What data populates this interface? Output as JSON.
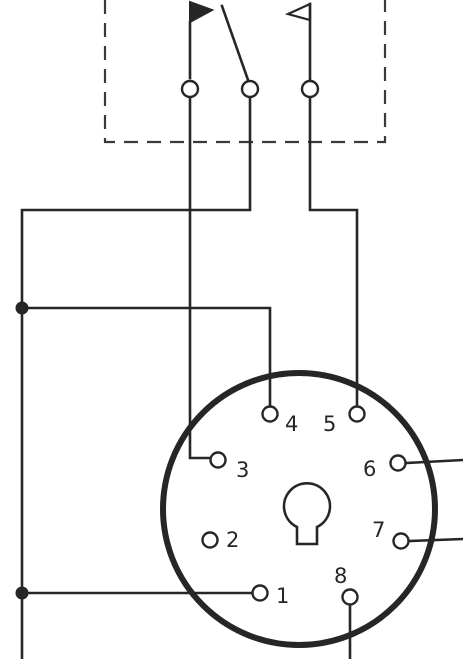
{
  "socket": {
    "pins": [
      {
        "number": "1"
      },
      {
        "number": "2"
      },
      {
        "number": "3"
      },
      {
        "number": "4"
      },
      {
        "number": "5"
      },
      {
        "number": "6"
      },
      {
        "number": "7"
      },
      {
        "number": "8"
      }
    ]
  },
  "colors": {
    "ink": "#262626",
    "paper": "#ffffff"
  }
}
